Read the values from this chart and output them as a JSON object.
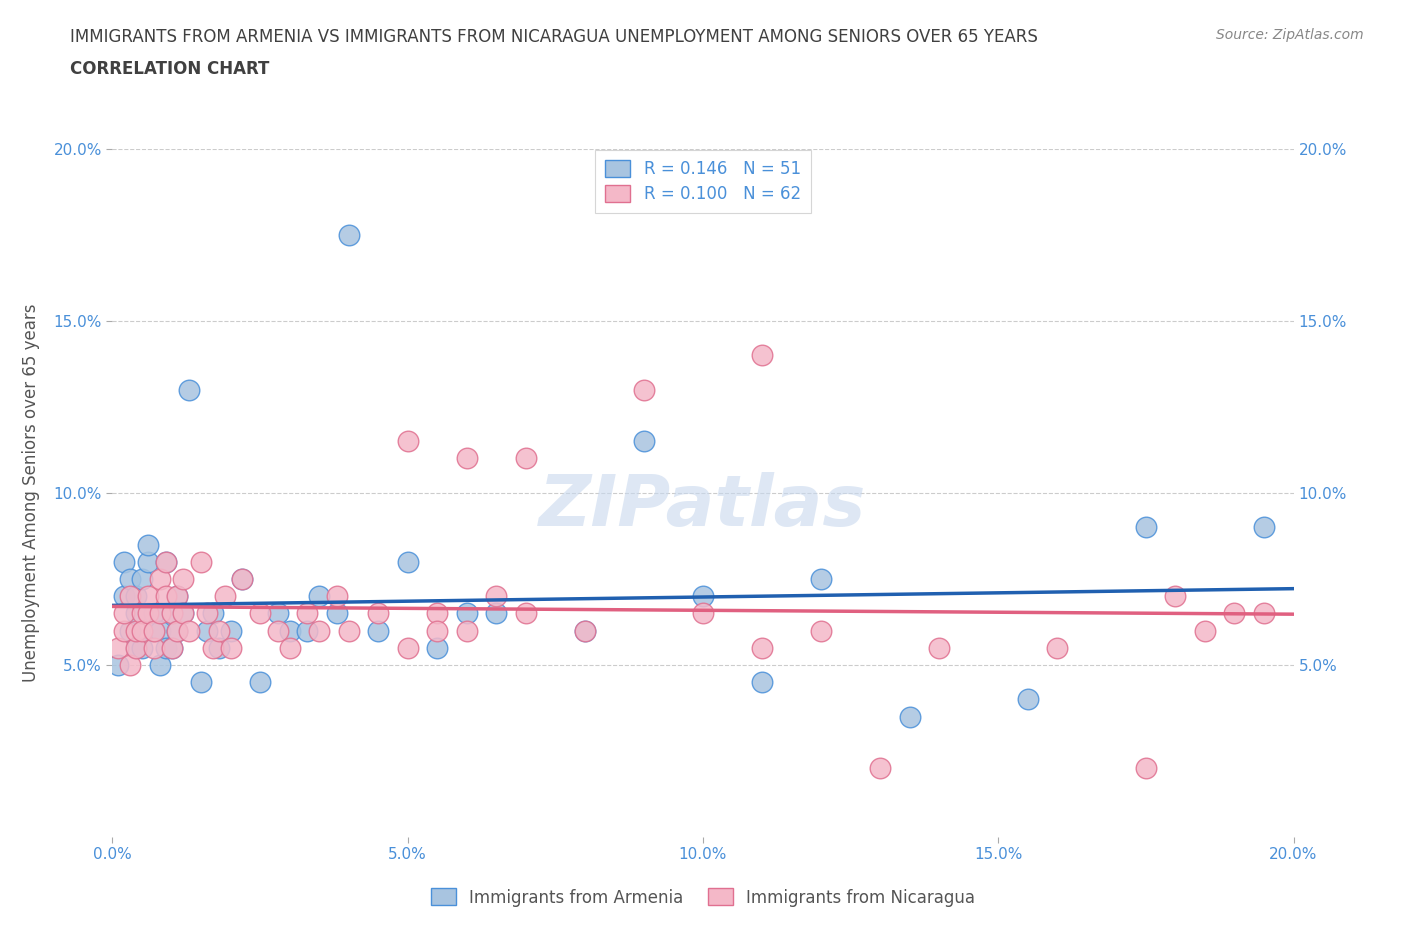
{
  "title_line1": "IMMIGRANTS FROM ARMENIA VS IMMIGRANTS FROM NICARAGUA UNEMPLOYMENT AMONG SENIORS OVER 65 YEARS",
  "title_line2": "CORRELATION CHART",
  "source_text": "Source: ZipAtlas.com",
  "ylabel": "Unemployment Among Seniors over 65 years",
  "xlim": [
    0.0,
    0.2
  ],
  "ylim": [
    0.0,
    0.2
  ],
  "xticks": [
    0.0,
    0.05,
    0.1,
    0.15,
    0.2
  ],
  "yticks": [
    0.05,
    0.1,
    0.15,
    0.2
  ],
  "xticklabels": [
    "0.0%",
    "5.0%",
    "10.0%",
    "15.0%",
    "20.0%"
  ],
  "yticklabels": [
    "5.0%",
    "10.0%",
    "15.0%",
    "20.0%"
  ],
  "right_yticklabels": [
    "5.0%",
    "10.0%",
    "15.0%",
    "20.0%"
  ],
  "right_yticks": [
    0.05,
    0.1,
    0.15,
    0.2
  ],
  "watermark": "ZIPatlas",
  "armenia_color": "#a8c4e0",
  "armenia_edge_color": "#4a90d9",
  "nicaragua_color": "#f4b8c8",
  "nicaragua_edge_color": "#e07090",
  "armenia_line_color": "#2060b0",
  "nicaragua_line_color": "#e06080",
  "R_armenia": 0.146,
  "N_armenia": 51,
  "R_nicaragua": 0.1,
  "N_nicaragua": 62,
  "armenia_scatter_x": [
    0.001,
    0.002,
    0.002,
    0.003,
    0.003,
    0.004,
    0.004,
    0.004,
    0.005,
    0.005,
    0.006,
    0.006,
    0.007,
    0.007,
    0.008,
    0.008,
    0.009,
    0.009,
    0.01,
    0.01,
    0.011,
    0.011,
    0.012,
    0.013,
    0.015,
    0.016,
    0.017,
    0.018,
    0.02,
    0.022,
    0.025,
    0.028,
    0.03,
    0.033,
    0.035,
    0.038,
    0.04,
    0.045,
    0.05,
    0.055,
    0.06,
    0.065,
    0.08,
    0.09,
    0.1,
    0.11,
    0.12,
    0.135,
    0.155,
    0.175,
    0.195
  ],
  "armenia_scatter_y": [
    0.05,
    0.07,
    0.08,
    0.06,
    0.075,
    0.055,
    0.065,
    0.07,
    0.055,
    0.075,
    0.08,
    0.085,
    0.06,
    0.065,
    0.05,
    0.06,
    0.055,
    0.08,
    0.065,
    0.055,
    0.07,
    0.06,
    0.065,
    0.13,
    0.045,
    0.06,
    0.065,
    0.055,
    0.06,
    0.075,
    0.045,
    0.065,
    0.06,
    0.06,
    0.07,
    0.065,
    0.175,
    0.06,
    0.08,
    0.055,
    0.065,
    0.065,
    0.06,
    0.115,
    0.07,
    0.045,
    0.075,
    0.035,
    0.04,
    0.09,
    0.09
  ],
  "nicaragua_scatter_x": [
    0.001,
    0.002,
    0.002,
    0.003,
    0.003,
    0.004,
    0.004,
    0.005,
    0.005,
    0.006,
    0.006,
    0.007,
    0.007,
    0.008,
    0.008,
    0.009,
    0.009,
    0.01,
    0.01,
    0.011,
    0.011,
    0.012,
    0.012,
    0.013,
    0.015,
    0.016,
    0.017,
    0.018,
    0.019,
    0.02,
    0.022,
    0.025,
    0.028,
    0.03,
    0.033,
    0.035,
    0.038,
    0.04,
    0.045,
    0.05,
    0.055,
    0.06,
    0.065,
    0.07,
    0.08,
    0.09,
    0.1,
    0.11,
    0.12,
    0.14,
    0.16,
    0.175,
    0.18,
    0.185,
    0.19,
    0.195,
    0.05,
    0.06,
    0.07,
    0.11,
    0.055,
    0.13
  ],
  "nicaragua_scatter_y": [
    0.055,
    0.06,
    0.065,
    0.07,
    0.05,
    0.055,
    0.06,
    0.065,
    0.06,
    0.065,
    0.07,
    0.055,
    0.06,
    0.075,
    0.065,
    0.07,
    0.08,
    0.055,
    0.065,
    0.06,
    0.07,
    0.065,
    0.075,
    0.06,
    0.08,
    0.065,
    0.055,
    0.06,
    0.07,
    0.055,
    0.075,
    0.065,
    0.06,
    0.055,
    0.065,
    0.06,
    0.07,
    0.06,
    0.065,
    0.055,
    0.065,
    0.06,
    0.07,
    0.065,
    0.06,
    0.13,
    0.065,
    0.055,
    0.06,
    0.055,
    0.055,
    0.02,
    0.07,
    0.06,
    0.065,
    0.065,
    0.115,
    0.11,
    0.11,
    0.14,
    0.06,
    0.02
  ],
  "grid_color": "#cccccc",
  "background_color": "#ffffff",
  "tick_color": "#4a90d9",
  "title_color": "#404040",
  "ylabel_color": "#555555",
  "legend_color": "#4a90d9"
}
